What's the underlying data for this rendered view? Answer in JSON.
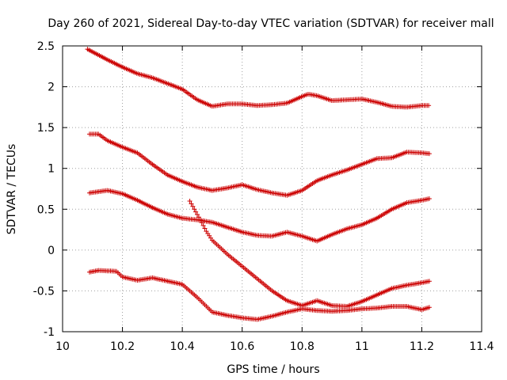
{
  "chart_data": {
    "type": "scatter",
    "title": "Day 260 of 2021, Sidereal Day-to-day VTEC variation (SDTVAR) for receiver mall",
    "xlabel": "GPS time / hours",
    "ylabel": "SDTVAR / TECUs",
    "xlim": [
      10,
      11.4
    ],
    "ylim": [
      -1,
      2.5
    ],
    "xticks": [
      10,
      10.2,
      10.4,
      10.6,
      10.8,
      11,
      11.2,
      11.4
    ],
    "xtick_labels": [
      "10",
      "10.2",
      "10.4",
      "10.6",
      "10.8",
      "11",
      "11.2",
      "11.4"
    ],
    "yticks": [
      -1,
      -0.5,
      0,
      0.5,
      1,
      1.5,
      2,
      2.5
    ],
    "ytick_labels": [
      "-1",
      "-0.5",
      "0",
      "0.5",
      "1",
      "1.5",
      "2",
      "2.5"
    ],
    "grid": true,
    "legend": "none",
    "marker": "+",
    "color": "#cc0000",
    "series": [
      {
        "name": "series-1",
        "x": [
          10.083,
          10.15,
          10.2,
          10.25,
          10.3,
          10.35,
          10.4,
          10.45,
          10.5,
          10.55,
          10.6,
          10.65,
          10.7,
          10.75,
          10.8,
          10.82,
          10.85,
          10.9,
          10.95,
          11.0,
          11.05,
          11.1,
          11.15,
          11.2,
          11.227
        ],
        "y": [
          2.46,
          2.33,
          2.24,
          2.16,
          2.11,
          2.04,
          1.97,
          1.84,
          1.76,
          1.79,
          1.79,
          1.77,
          1.78,
          1.8,
          1.88,
          1.91,
          1.89,
          1.83,
          1.84,
          1.85,
          1.81,
          1.76,
          1.75,
          1.77,
          1.77
        ]
      },
      {
        "name": "series-2",
        "x": [
          10.09,
          10.12,
          10.15,
          10.2,
          10.25,
          10.3,
          10.35,
          10.4,
          10.45,
          10.5,
          10.55,
          10.6,
          10.65,
          10.7,
          10.75,
          10.8,
          10.85,
          10.9,
          10.95,
          11.0,
          11.05,
          11.1,
          11.15,
          11.2,
          11.227
        ],
        "y": [
          1.42,
          1.42,
          1.34,
          1.26,
          1.19,
          1.05,
          0.92,
          0.84,
          0.77,
          0.73,
          0.76,
          0.8,
          0.74,
          0.7,
          0.67,
          0.73,
          0.85,
          0.92,
          0.98,
          1.05,
          1.12,
          1.13,
          1.2,
          1.19,
          1.18
        ]
      },
      {
        "name": "series-3",
        "x": [
          10.09,
          10.15,
          10.2,
          10.25,
          10.3,
          10.35,
          10.4,
          10.45,
          10.5,
          10.55,
          10.6,
          10.65,
          10.7,
          10.75,
          10.8,
          10.85,
          10.9,
          10.95,
          11.0,
          11.05,
          11.1,
          11.15,
          11.2,
          11.227
        ],
        "y": [
          0.7,
          0.73,
          0.69,
          0.61,
          0.52,
          0.44,
          0.39,
          0.37,
          0.34,
          0.28,
          0.22,
          0.18,
          0.17,
          0.22,
          0.17,
          0.11,
          0.19,
          0.26,
          0.31,
          0.39,
          0.5,
          0.58,
          0.61,
          0.63
        ]
      },
      {
        "name": "series-4",
        "x": [
          10.09,
          10.12,
          10.18,
          10.2,
          10.25,
          10.3,
          10.35,
          10.4,
          10.45,
          10.5,
          10.55,
          10.6,
          10.65,
          10.7,
          10.75,
          10.8,
          10.85,
          10.9,
          10.95,
          11.0,
          11.05,
          11.1,
          11.15,
          11.2,
          11.227
        ],
        "y": [
          -0.27,
          -0.25,
          -0.26,
          -0.33,
          -0.37,
          -0.34,
          -0.38,
          -0.42,
          -0.58,
          -0.76,
          -0.8,
          -0.83,
          -0.85,
          -0.81,
          -0.76,
          -0.72,
          -0.74,
          -0.75,
          -0.74,
          -0.72,
          -0.71,
          -0.69,
          -0.69,
          -0.73,
          -0.7
        ]
      },
      {
        "name": "series-5",
        "x": [
          10.425,
          10.44,
          10.46,
          10.48,
          10.5,
          10.55,
          10.6,
          10.65,
          10.7,
          10.75,
          10.8,
          10.85,
          10.9,
          10.95,
          11.0,
          11.05,
          11.1,
          11.15,
          11.2,
          11.227
        ],
        "y": [
          0.6,
          0.5,
          0.37,
          0.23,
          0.12,
          -0.05,
          -0.2,
          -0.35,
          -0.5,
          -0.62,
          -0.68,
          -0.62,
          -0.68,
          -0.69,
          -0.63,
          -0.55,
          -0.47,
          -0.43,
          -0.4,
          -0.38
        ]
      }
    ]
  }
}
